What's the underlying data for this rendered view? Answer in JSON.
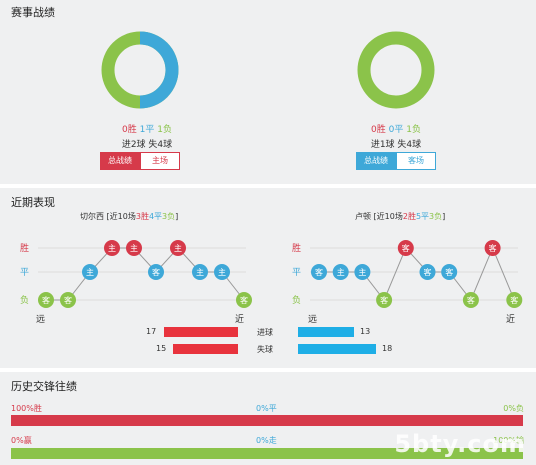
{
  "record": {
    "title": "赛事战绩",
    "left": {
      "win_ratio": 0,
      "draw_ratio": 0.5,
      "loss_ratio": 0.5,
      "wins": "0胜",
      "draws": "1平",
      "losses": "1负",
      "goals": "进2球 失4球",
      "tab_total": "总战绩",
      "tab_venue": "主场"
    },
    "right": {
      "win_ratio": 0,
      "draw_ratio": 0,
      "loss_ratio": 1,
      "wins": "0胜",
      "draws": "0平",
      "losses": "1负",
      "goals": "进1球 失4球",
      "tab_total": "总战绩",
      "tab_venue": "客场"
    }
  },
  "recent": {
    "title": "近期表现",
    "left": {
      "team": "切尔西",
      "summary_pre": "[近10场",
      "wins": "3胜",
      "draws": "4平",
      "losses": "3负",
      "summary_post": "]",
      "results": [
        {
          "r": "L",
          "label": "客"
        },
        {
          "r": "L",
          "label": "客"
        },
        {
          "r": "D",
          "label": "主"
        },
        {
          "r": "W",
          "label": "主"
        },
        {
          "r": "W",
          "label": "主"
        },
        {
          "r": "D",
          "label": "客"
        },
        {
          "r": "W",
          "label": "主"
        },
        {
          "r": "D",
          "label": "主"
        },
        {
          "r": "D",
          "label": "主"
        },
        {
          "r": "L",
          "label": "客"
        }
      ],
      "far": "远",
      "near": "近"
    },
    "right": {
      "team": "卢顿",
      "summary_pre": "[近10场",
      "wins": "2胜",
      "draws": "5平",
      "losses": "3负",
      "summary_post": "]",
      "results": [
        {
          "r": "D",
          "label": "客"
        },
        {
          "r": "D",
          "label": "主"
        },
        {
          "r": "D",
          "label": "主"
        },
        {
          "r": "L",
          "label": "客"
        },
        {
          "r": "W",
          "label": "客"
        },
        {
          "r": "D",
          "label": "客"
        },
        {
          "r": "D",
          "label": "客"
        },
        {
          "r": "L",
          "label": "客"
        },
        {
          "r": "W",
          "label": "客"
        },
        {
          "r": "L",
          "label": "客"
        }
      ],
      "far": "远",
      "near": "近"
    },
    "y_labels": {
      "win": "胜",
      "draw": "平",
      "loss": "负"
    },
    "goals_for": {
      "label": "进球",
      "left": 17,
      "right": 13
    },
    "goals_against": {
      "label": "失球",
      "left": 15,
      "right": 18
    },
    "bar_scale_max": 18
  },
  "h2h": {
    "title": "历史交锋往绩",
    "row1": {
      "left": "100%胜",
      "mid": "0%平",
      "right": "0%负",
      "fill": 1.0
    },
    "row2": {
      "left": "0%赢",
      "mid": "0%走",
      "right": "100%输",
      "fill": 1.0
    }
  },
  "watermark": "5bty.com",
  "colors": {
    "win": "#d63a4a",
    "draw": "#3ea8d8",
    "loss": "#8bc34a",
    "bar_red": "#e8333d",
    "bar_blue": "#1eaee6"
  }
}
